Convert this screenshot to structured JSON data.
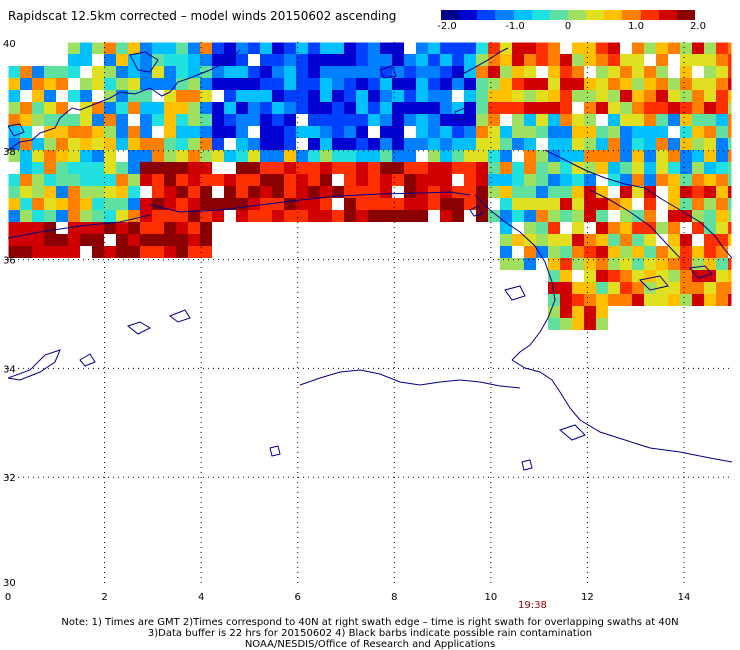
{
  "title": "Rapidscat 12.5km corrected – model winds 20150602 ascending",
  "colorbar": {
    "labels": [
      "-2.0",
      "-1.0",
      "0",
      "1.0",
      "2.0"
    ],
    "colors": [
      "#00008b",
      "#0000d0",
      "#0040ff",
      "#0080ff",
      "#00c0ff",
      "#20e0e0",
      "#60e0a0",
      "#a0e060",
      "#e0e020",
      "#ffc000",
      "#ff8000",
      "#ff3000",
      "#d00000",
      "#8b0000"
    ]
  },
  "axes": {
    "lat_labels": [
      "40",
      "38",
      "36",
      "34",
      "32",
      "30"
    ],
    "lon_labels": [
      "0",
      "2",
      "4",
      "6",
      "8",
      "10",
      "12",
      "14"
    ]
  },
  "time_label": "19:38",
  "notes": {
    "line1": "Note: 1) Times are GMT 2)Times correspond to 40N at right swath edge – time is right swath for overlapping swaths at 40N",
    "line2": "3)Data buffer is 22 hrs for 20150602 4) Black barbs indicate possible rain contamination",
    "line3": "NOAA/NESDIS/Office of Research and Applications"
  }
}
